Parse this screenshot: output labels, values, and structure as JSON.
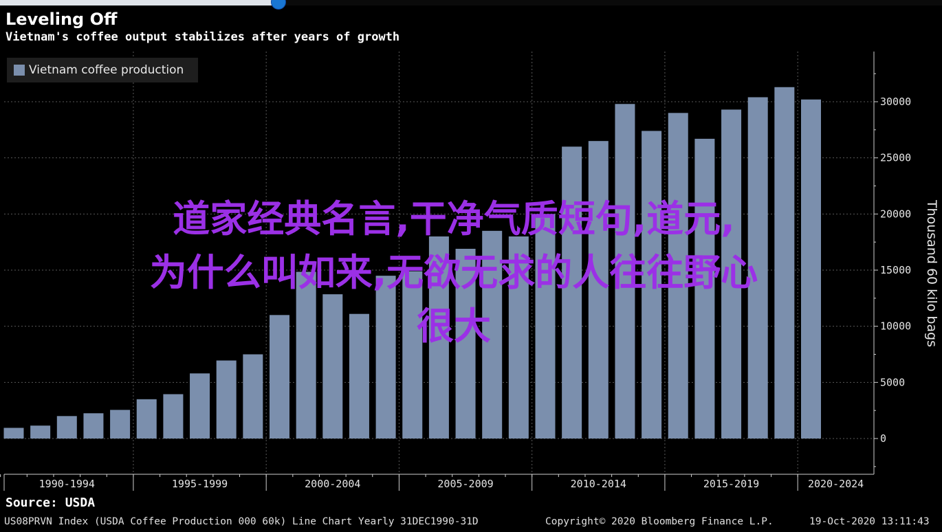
{
  "chart_data": {
    "type": "bar",
    "title": "Leveling Off",
    "subtitle": "Vietnam's coffee output stabilizes after years of growth",
    "ylabel": "Thousand 60 kilo bags",
    "ylim": [
      -3000,
      34000
    ],
    "y_ticks": [
      0,
      5000,
      10000,
      15000,
      20000,
      25000,
      30000
    ],
    "y_tick_labels": [
      "0",
      "5000",
      "10000",
      "15000",
      "20000",
      "25000",
      "30000"
    ],
    "x_groups": [
      "1990-1994",
      "1995-1999",
      "2000-2004",
      "2005-2009",
      "2010-2014",
      "2015-2019",
      "2020-2024"
    ],
    "series": [
      {
        "name": "Vietnam coffee production",
        "color": "#7b8fad",
        "x": [
          1990,
          1991,
          1992,
          1993,
          1994,
          1995,
          1996,
          1997,
          1998,
          1999,
          2000,
          2001,
          2002,
          2003,
          2004,
          2005,
          2006,
          2007,
          2008,
          2009,
          2010,
          2011,
          2012,
          2013,
          2014,
          2015,
          2016,
          2017,
          2018,
          2019,
          2020
        ],
        "values": [
          950,
          1150,
          2000,
          2250,
          2550,
          3500,
          3950,
          5800,
          6950,
          7500,
          11000,
          14850,
          12850,
          11100,
          14500,
          14900,
          18000,
          16900,
          18500,
          18000,
          20000,
          26000,
          26500,
          29800,
          27400,
          29000,
          26700,
          29300,
          30400,
          31300,
          30200
        ]
      }
    ],
    "grid": true,
    "legend_position": "top-left"
  },
  "source": "Source: USDA",
  "footer": {
    "index": "US08PRVN Index (USDA Coffee Production 000 60k) Line Chart  Yearly 31DEC1990-31D",
    "copyright": "Copyright© 2020 Bloomberg Finance L.P.",
    "timestamp": "19-Oct-2020 13:11:43"
  },
  "overlay": {
    "line1": "道家经典名言,干净气质短句,道元,",
    "line2": "为什么叫如来,无欲无求的人往往野心",
    "line3": "很大"
  },
  "colors": {
    "background": "#000000",
    "bar": "#7b8fad",
    "grid": "#5a5a5a",
    "overlay_text": "#9b30e6"
  }
}
